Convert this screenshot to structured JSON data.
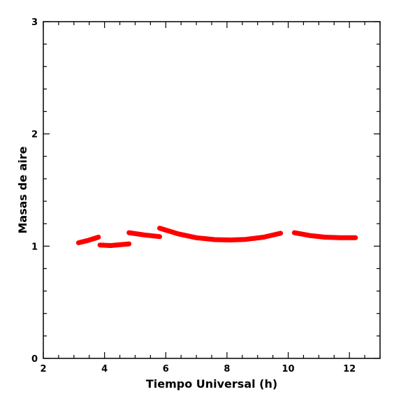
{
  "chart_data": {
    "type": "line",
    "title": "",
    "xlabel": "Tiempo Universal (h)",
    "ylabel": "Masas de aire",
    "xlim": [
      2,
      13
    ],
    "ylim": [
      0,
      3
    ],
    "xticks": [
      2,
      4,
      6,
      8,
      10,
      12
    ],
    "yticks": [
      0,
      1,
      2,
      3
    ],
    "grid": false,
    "series_color": "#ff0000",
    "series": [
      {
        "x": [
          3.15,
          3.45,
          3.8
        ],
        "y": [
          1.03,
          1.05,
          1.08
        ]
      },
      {
        "x": [
          3.85,
          4.2,
          4.8
        ],
        "y": [
          1.01,
          1.005,
          1.02
        ]
      },
      {
        "x": [
          4.8,
          5.3,
          5.8
        ],
        "y": [
          1.12,
          1.1,
          1.085
        ]
      },
      {
        "x": [
          5.8,
          6.4,
          7.0,
          7.6,
          8.1,
          8.6,
          9.2,
          9.75
        ],
        "y": [
          1.16,
          1.11,
          1.075,
          1.058,
          1.055,
          1.06,
          1.08,
          1.115
        ]
      },
      {
        "x": [
          10.2,
          10.7,
          11.2,
          11.7,
          12.2
        ],
        "y": [
          1.12,
          1.095,
          1.08,
          1.075,
          1.075
        ]
      }
    ]
  }
}
